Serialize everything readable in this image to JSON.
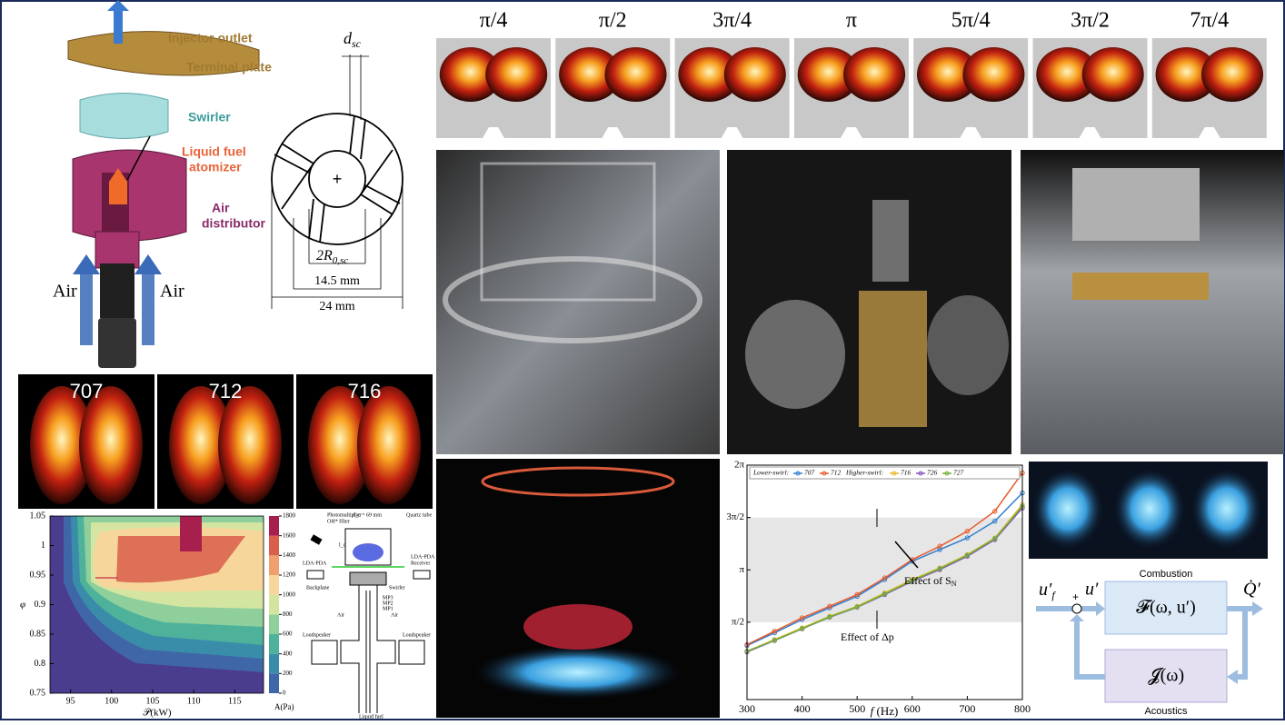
{
  "injector": {
    "outlet": "Injector outlet",
    "plate": "Terminal plate",
    "swirler": "Swirler",
    "atomizer": [
      "Liquid fuel",
      "atomizer"
    ],
    "distributor": [
      "Air",
      "distributor"
    ],
    "air_left": "Air",
    "air_right": "Air"
  },
  "swirler_section": {
    "d_symbol": "d",
    "d_sub": "sc",
    "center": "+",
    "r_symbol": "2R",
    "r_sub": "0,sc",
    "inner_dim": "14.5 mm",
    "outer_dim": "24 mm"
  },
  "phase_labels": [
    "π/4",
    "π/2",
    "3π/4",
    "π",
    "5π/4",
    "3π/2",
    "7π/4"
  ],
  "flame_labels": [
    "707",
    "712",
    "716"
  ],
  "contour": {
    "ylabel": "φ",
    "xlabel": "𝒫(kW)",
    "colorbar_label": "A(Pa)",
    "xlim": [
      92.5,
      118.5
    ],
    "xticks": [
      95,
      100,
      105,
      110,
      115
    ],
    "ylim": [
      0.75,
      1.05
    ],
    "yticks": [
      0.75,
      0.8,
      0.85,
      0.9,
      0.95,
      1,
      1.05
    ],
    "cbar_lim": [
      0,
      1800
    ],
    "cbar_ticks": [
      0,
      200,
      400,
      600,
      800,
      1000,
      1200,
      1400,
      1600,
      1800
    ],
    "cbar_colors": [
      "#4b3d8e",
      "#3f67a7",
      "#3a8da9",
      "#4eb29b",
      "#8ecf9b",
      "#d4e5a1",
      "#f6d69a",
      "#f19f6e",
      "#d95e4c",
      "#a61f4d"
    ]
  },
  "schematic": {
    "pm": [
      "Photomultiplier",
      "OH* filter"
    ],
    "dc": "d_c = 69 mm",
    "quartz": "Quartz tube",
    "lc": "l_c",
    "lda_left": "LDA-PDA",
    "lda_right": [
      "LDA-PDA",
      "Receiver"
    ],
    "backplane": "Backplane",
    "swirler": "Swirler",
    "mp": [
      "MP3",
      "MP2",
      "MP1"
    ],
    "loud_left": "Loudspeaker",
    "loud_right": "Loudspeaker",
    "air_left": "Air",
    "air_right": "Air",
    "fuel": "Liquid fuel"
  },
  "phase_plot": {
    "type": "line",
    "xlabel_symbol": "f",
    "xlabel_unit": " (Hz)",
    "legend_lower": "Lower-swirl:",
    "legend_higher": "Higher-swirl:",
    "annotation_swirl": "Effect of S",
    "annotation_swirl_sub": "N",
    "annotation_dp": "Effect of Δp",
    "x": [
      300,
      350,
      400,
      450,
      500,
      550,
      600,
      650,
      700,
      750,
      800
    ],
    "xlim": [
      300,
      800
    ],
    "xticks": [
      300,
      400,
      500,
      600,
      700,
      800
    ],
    "ylim": [
      -0.75,
      6.2832
    ],
    "yticks": [
      {
        "value": 1.5708,
        "label": "π/2"
      },
      {
        "value": 3.1416,
        "label": "π"
      },
      {
        "value": 4.7124,
        "label": "3π/2"
      },
      {
        "value": 6.2832,
        "label": "2π"
      }
    ],
    "band": [
      1.5708,
      4.7124
    ],
    "series": [
      {
        "name": "707",
        "group": "lower",
        "color": "#2f7fd0",
        "values": [
          0.87,
          1.25,
          1.65,
          2.0,
          2.35,
          2.85,
          3.4,
          3.75,
          4.1,
          4.6,
          5.45
        ]
      },
      {
        "name": "712",
        "group": "lower",
        "color": "#e8592b",
        "values": [
          0.9,
          1.3,
          1.7,
          2.05,
          2.4,
          2.9,
          3.45,
          3.85,
          4.3,
          4.9,
          6.05
        ]
      },
      {
        "name": "716",
        "group": "higher",
        "color": "#e8b82a",
        "values": [
          0.7,
          1.05,
          1.4,
          1.75,
          2.05,
          2.45,
          2.85,
          3.2,
          3.6,
          4.1,
          5.1
        ]
      },
      {
        "name": "726",
        "group": "higher",
        "color": "#8a4fb8",
        "values": [
          0.68,
          1.02,
          1.37,
          1.72,
          2.02,
          2.4,
          2.8,
          3.15,
          3.55,
          4.05,
          5.0
        ]
      },
      {
        "name": "727",
        "group": "higher",
        "color": "#6fb33a",
        "values": [
          0.7,
          1.03,
          1.38,
          1.73,
          2.03,
          2.42,
          2.82,
          3.18,
          3.58,
          4.08,
          5.05
        ]
      }
    ]
  },
  "block": {
    "combustion": "Combustion",
    "acoustics": "Acoustics",
    "flame_tf": "𝓕(ω, u′)",
    "acoustic_tf": "𝓙(ω)",
    "input": "u′",
    "input_sub": "f",
    "plus": "+",
    "velocity": "u′",
    "heat": "Q̇′"
  }
}
